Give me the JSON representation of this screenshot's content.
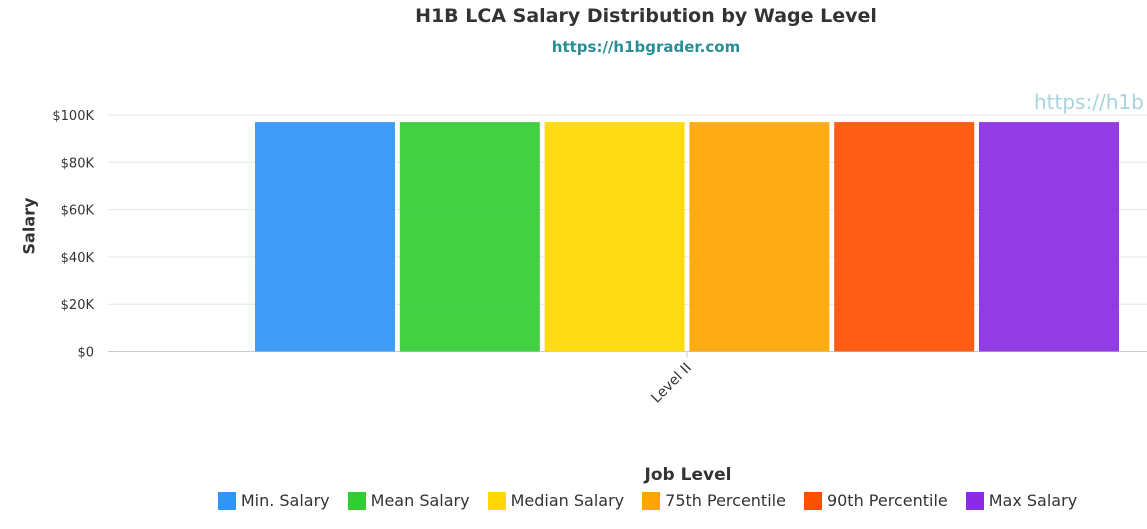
{
  "title": "H1B LCA Salary Distribution by Wage Level",
  "subtitle": "https://h1bgrader.com",
  "watermark": "https://h1b",
  "chart_data": {
    "type": "bar",
    "title": "H1B LCA Salary Distribution by Wage Level",
    "subtitle": "https://h1bgrader.com",
    "xlabel": "Job Level",
    "ylabel": "Salary",
    "categories": [
      "Level II"
    ],
    "ylim": [
      0,
      100000
    ],
    "yticks": [
      {
        "value": 0,
        "label": "$0"
      },
      {
        "value": 20000,
        "label": "$20K"
      },
      {
        "value": 40000,
        "label": "$40K"
      },
      {
        "value": 60000,
        "label": "$60K"
      },
      {
        "value": 80000,
        "label": "$80K"
      },
      {
        "value": 100000,
        "label": "$100K"
      }
    ],
    "grid": true,
    "legend_position": "bottom",
    "series": [
      {
        "name": "Min. Salary",
        "color": "#2f95f6",
        "values": [
          97000
        ]
      },
      {
        "name": "Mean Salary",
        "color": "#33cc33",
        "values": [
          97000
        ]
      },
      {
        "name": "Median Salary",
        "color": "#ffd800",
        "values": [
          97000
        ]
      },
      {
        "name": "75th Percentile",
        "color": "#ffa500",
        "values": [
          97000
        ]
      },
      {
        "name": "90th Percentile",
        "color": "#ff4f00",
        "values": [
          97000
        ]
      },
      {
        "name": "Max Salary",
        "color": "#8b2be2",
        "values": [
          97000
        ]
      }
    ]
  }
}
